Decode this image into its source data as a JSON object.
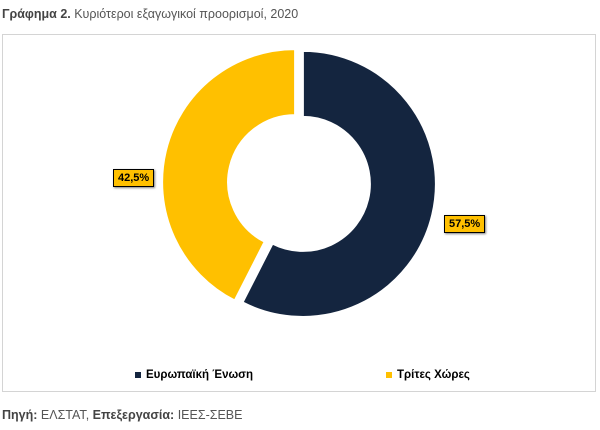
{
  "caption": {
    "prefix": "Γράφημα 2.",
    "text": " Κυριότεροι εξαγωγικοί προορισμοί, 2020"
  },
  "source": {
    "label1": "Πηγή:",
    "value1": " ΕΛΣΤΑΤ, ",
    "label2": "Επεξεργασία:",
    "value2": " ΙΕΕΣ-ΣΕΒΕ"
  },
  "chart_data": {
    "type": "pie",
    "donut": true,
    "title": "",
    "categories": [
      "Ευρωπαϊκή Ένωση",
      "Τρίτες Χώρες"
    ],
    "values": [
      57.5,
      42.5
    ],
    "labels": [
      "57,5%",
      "42,5%"
    ],
    "colors": [
      "#14253f",
      "#ffc000"
    ],
    "legend_position": "bottom",
    "exploded": true
  }
}
